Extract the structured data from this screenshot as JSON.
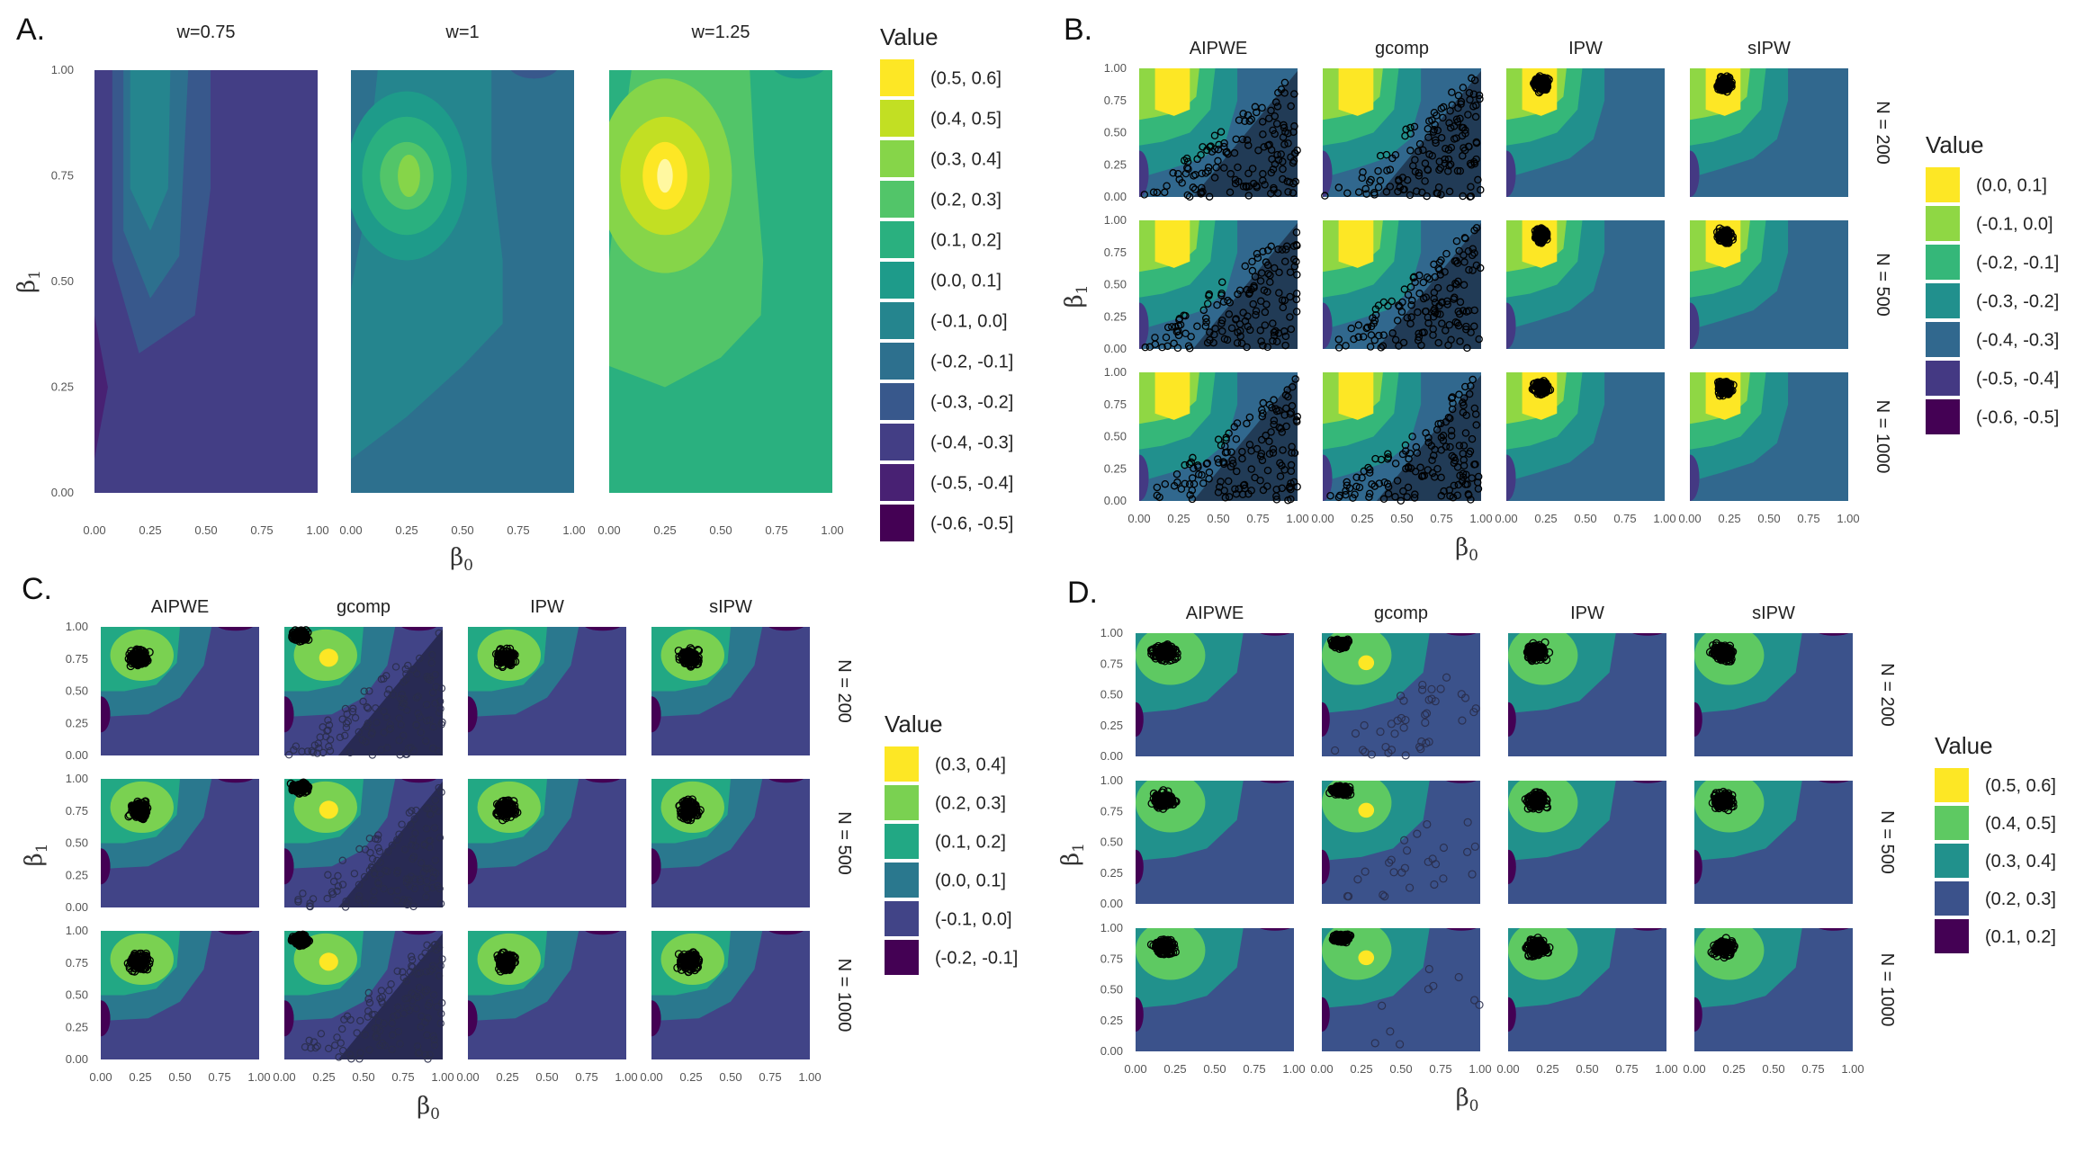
{
  "figure": {
    "panel_labels": [
      "A.",
      "B.",
      "C.",
      "D."
    ],
    "x_label": "β0",
    "y_label": "β1",
    "legend_title": "Value"
  },
  "chart_data": [
    {
      "panel": "A.",
      "type": "heatmap",
      "subtype": "filled-contour",
      "facets": [
        "w=0.75",
        "w=1",
        "w=1.25"
      ],
      "x": {
        "label": "β0",
        "range": [
          0,
          1
        ],
        "ticks": [
          "0.00",
          "0.25",
          "0.50",
          "0.75",
          "1.00"
        ]
      },
      "y": {
        "label": "β1",
        "range": [
          0,
          1
        ],
        "ticks": [
          "0.00",
          "0.25",
          "0.50",
          "0.75",
          "1.00"
        ]
      },
      "legend": {
        "title": "Value",
        "bins": [
          {
            "label": "(0.5, 0.6]",
            "color": "#fde725"
          },
          {
            "label": "(0.4, 0.5]",
            "color": "#c2df23"
          },
          {
            "label": "(0.3, 0.4]",
            "color": "#86d549"
          },
          {
            "label": "(0.2, 0.3]",
            "color": "#52c569"
          },
          {
            "label": "(0.1, 0.2]",
            "color": "#2ab07f"
          },
          {
            "label": "(0.0, 0.1]",
            "color": "#1e9b8a"
          },
          {
            "label": "(-0.1, 0.0]",
            "color": "#25858e"
          },
          {
            "label": "(-0.2, -0.1]",
            "color": "#2d708e"
          },
          {
            "label": "(-0.3, -0.2]",
            "color": "#38588c"
          },
          {
            "label": "(-0.4, -0.3]",
            "color": "#433e85"
          },
          {
            "label": "(-0.5, -0.4]",
            "color": "#482173"
          },
          {
            "label": "(-0.6, -0.5]",
            "color": "#440154"
          }
        ]
      },
      "peak_location": {
        "beta0": 0.25,
        "beta1": 0.75
      }
    },
    {
      "panel": "B.",
      "type": "heatmap",
      "subtype": "filled-contour with scatter",
      "columns": [
        "AIPWE",
        "gcomp",
        "IPW",
        "sIPW"
      ],
      "rows": [
        "N = 200",
        "N = 500",
        "N = 1000"
      ],
      "x": {
        "label": "β0",
        "range": [
          0,
          1
        ],
        "ticks": [
          "0.00",
          "0.25",
          "0.50",
          "0.75",
          "1.00"
        ]
      },
      "y": {
        "label": "β1",
        "range": [
          0,
          1
        ],
        "ticks": [
          "0.00",
          "0.25",
          "0.50",
          "0.75",
          "1.00"
        ]
      },
      "legend": {
        "title": "Value",
        "bins": [
          {
            "label": "(0.0, 0.1]",
            "color": "#fde725"
          },
          {
            "label": "(-0.1, 0.0]",
            "color": "#8fd744"
          },
          {
            "label": "(-0.2, -0.1]",
            "color": "#35b779"
          },
          {
            "label": "(-0.3, -0.2]",
            "color": "#21908d"
          },
          {
            "label": "(-0.4, -0.3]",
            "color": "#31688e"
          },
          {
            "label": "(-0.5, -0.4]",
            "color": "#443983"
          },
          {
            "label": "(-0.6, -0.5]",
            "color": "#440154"
          }
        ]
      },
      "estimate_clusters": {
        "AIPWE": "spread over triangle beta1 < beta0",
        "gcomp": "spread over triangle beta1 < beta0",
        "IPW": {
          "beta0": 0.22,
          "beta1": 0.9
        },
        "sIPW": {
          "beta0": 0.22,
          "beta1": 0.9
        }
      }
    },
    {
      "panel": "C.",
      "type": "heatmap",
      "subtype": "filled-contour with scatter",
      "columns": [
        "AIPWE",
        "gcomp",
        "IPW",
        "sIPW"
      ],
      "rows": [
        "N = 200",
        "N = 500",
        "N = 1000"
      ],
      "x": {
        "label": "β0",
        "range": [
          0,
          1
        ],
        "ticks": [
          "0.00",
          "0.25",
          "0.50",
          "0.75",
          "1.00"
        ]
      },
      "y": {
        "label": "β1",
        "range": [
          0,
          1
        ],
        "ticks": [
          "0.00",
          "0.25",
          "0.50",
          "0.75",
          "1.00"
        ]
      },
      "legend": {
        "title": "Value",
        "bins": [
          {
            "label": "(0.3, 0.4]",
            "color": "#fde725"
          },
          {
            "label": "(0.2, 0.3]",
            "color": "#7ad151"
          },
          {
            "label": "(0.1, 0.2]",
            "color": "#22a884"
          },
          {
            "label": "(0.0, 0.1]",
            "color": "#2a788e"
          },
          {
            "label": "(-0.1, 0.0]",
            "color": "#414487"
          },
          {
            "label": "(-0.2, -0.1]",
            "color": "#440154"
          }
        ]
      },
      "estimate_clusters": {
        "AIPWE": {
          "beta0": 0.25,
          "beta1": 0.75
        },
        "gcomp": {
          "beta0": 0.1,
          "beta1": 0.92
        },
        "IPW": {
          "beta0": 0.25,
          "beta1": 0.75
        },
        "sIPW": {
          "beta0": 0.25,
          "beta1": 0.75
        }
      }
    },
    {
      "panel": "D.",
      "type": "heatmap",
      "subtype": "filled-contour with scatter",
      "columns": [
        "AIPWE",
        "gcomp",
        "IPW",
        "sIPW"
      ],
      "rows": [
        "N = 200",
        "N = 500",
        "N = 1000"
      ],
      "x": {
        "label": "β0",
        "range": [
          0,
          1
        ],
        "ticks": [
          "0.00",
          "0.25",
          "0.50",
          "0.75",
          "1.00"
        ]
      },
      "y": {
        "label": "β1",
        "range": [
          0,
          1
        ],
        "ticks": [
          "0.00",
          "0.25",
          "0.50",
          "0.75",
          "1.00"
        ]
      },
      "legend": {
        "title": "Value",
        "bins": [
          {
            "label": "(0.5, 0.6]",
            "color": "#fde725"
          },
          {
            "label": "(0.4, 0.5]",
            "color": "#5ec962"
          },
          {
            "label": "(0.3, 0.4]",
            "color": "#21918c"
          },
          {
            "label": "(0.2, 0.3]",
            "color": "#3b528b"
          },
          {
            "label": "(0.1, 0.2]",
            "color": "#440154"
          }
        ]
      },
      "estimate_clusters": {
        "AIPWE": {
          "beta0": 0.2,
          "beta1": 0.85
        },
        "gcomp": {
          "beta0": 0.15,
          "beta1": 0.9
        },
        "IPW": {
          "beta0": 0.2,
          "beta1": 0.85
        },
        "sIPW": {
          "beta0": 0.2,
          "beta1": 0.85
        }
      }
    }
  ]
}
